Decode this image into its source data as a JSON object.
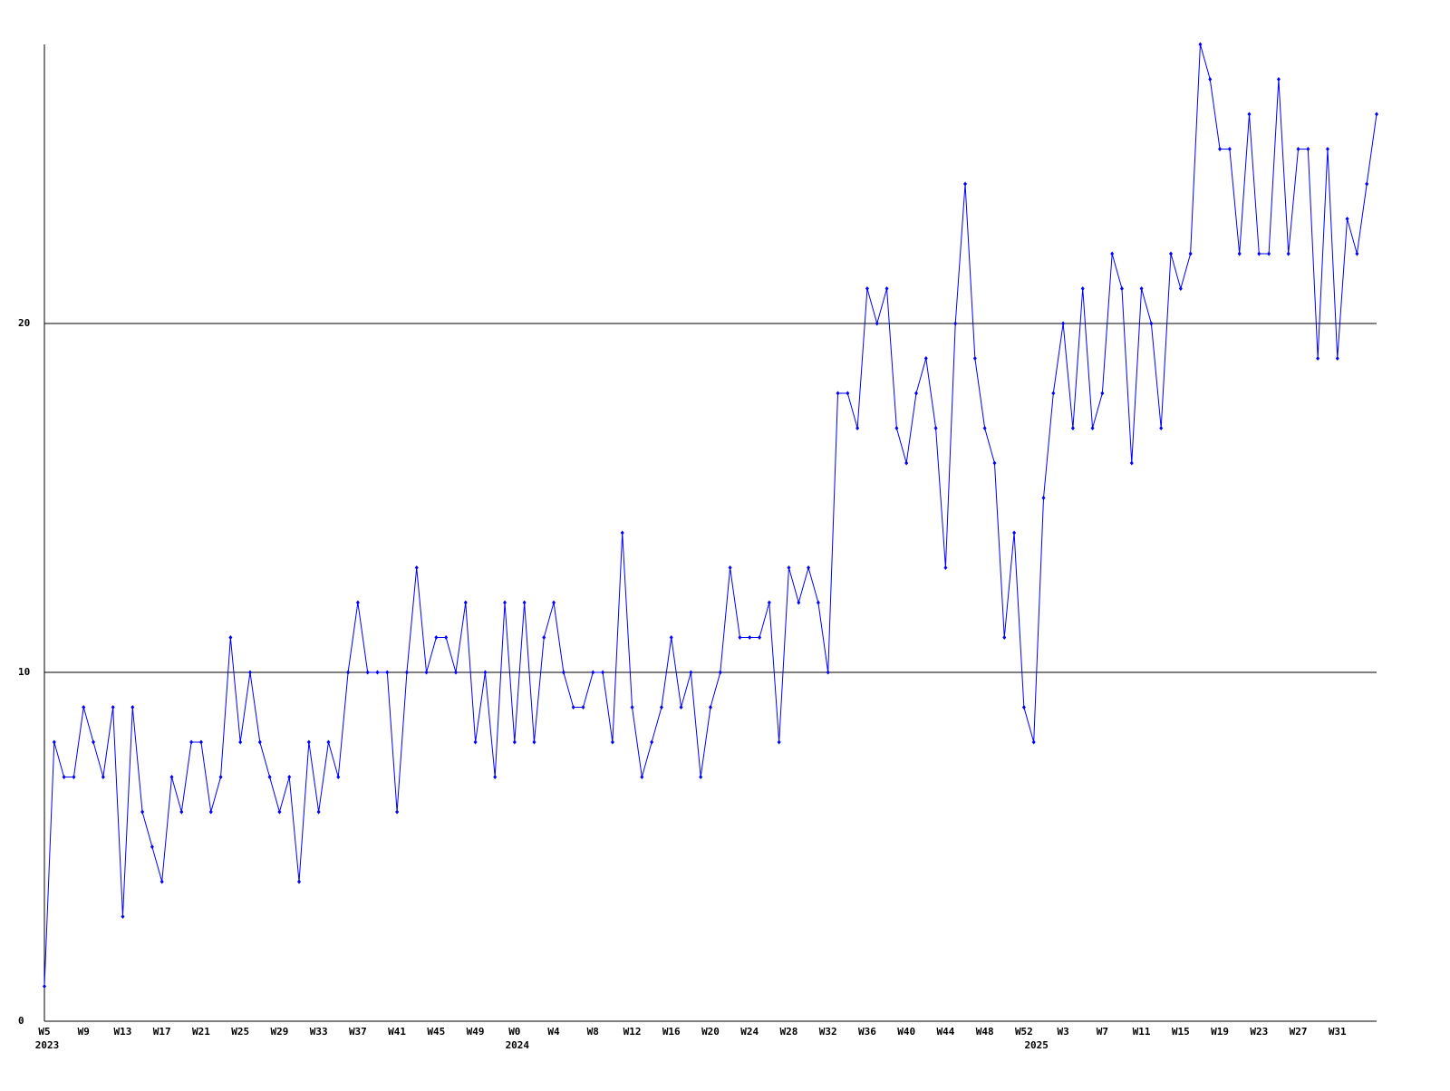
{
  "chart_data": {
    "type": "line",
    "categories": [
      "W5",
      null,
      null,
      null,
      "W9",
      null,
      null,
      null,
      "W13",
      null,
      null,
      null,
      "W17",
      null,
      null,
      null,
      "W21",
      null,
      null,
      null,
      "W25",
      null,
      null,
      null,
      "W29",
      null,
      null,
      null,
      "W33",
      null,
      null,
      null,
      "W37",
      null,
      null,
      null,
      "W41",
      null,
      null,
      null,
      "W45",
      null,
      null,
      null,
      "W49",
      null,
      null,
      null,
      "W0",
      null,
      null,
      null,
      "W4",
      null,
      null,
      null,
      "W8",
      null,
      null,
      null,
      "W12",
      null,
      null,
      null,
      "W16",
      null,
      null,
      null,
      "W20",
      null,
      null,
      null,
      "W24",
      null,
      null,
      null,
      "W28",
      null,
      null,
      null,
      "W32",
      null,
      null,
      null,
      "W36",
      null,
      null,
      null,
      "W40",
      null,
      null,
      null,
      "W44",
      null,
      null,
      null,
      "W48",
      null,
      null,
      null,
      "W52",
      null,
      null,
      null,
      "W3",
      null,
      null,
      null,
      "W7",
      null,
      null,
      null,
      "W11",
      null,
      null,
      null,
      "W15",
      null,
      null,
      null,
      "W19",
      null,
      null,
      null,
      "W23",
      null,
      null,
      null,
      "W27",
      null,
      null,
      null,
      "W31",
      null,
      null,
      null,
      null
    ],
    "years": [
      "2023",
      null,
      null,
      null,
      null,
      null,
      null,
      null,
      null,
      null,
      null,
      null,
      null,
      null,
      null,
      null,
      null,
      null,
      null,
      null,
      null,
      null,
      null,
      null,
      null,
      null,
      null,
      null,
      null,
      null,
      null,
      null,
      null,
      null,
      null,
      null,
      null,
      null,
      null,
      null,
      null,
      null,
      null,
      null,
      null,
      null,
      null,
      null,
      "2024",
      null,
      null,
      null,
      null,
      null,
      null,
      null,
      null,
      null,
      null,
      null,
      null,
      null,
      null,
      null,
      null,
      null,
      null,
      null,
      null,
      null,
      null,
      null,
      null,
      null,
      null,
      null,
      null,
      null,
      null,
      null,
      null,
      null,
      null,
      null,
      null,
      null,
      null,
      null,
      null,
      null,
      null,
      null,
      null,
      null,
      null,
      null,
      null,
      null,
      null,
      null,
      null,
      "2025",
      null,
      null,
      null,
      null,
      null,
      null,
      null,
      null,
      null,
      null,
      null,
      null,
      null,
      null,
      null,
      null,
      null,
      null,
      null,
      null,
      null,
      null,
      null,
      null,
      null,
      null,
      null,
      null,
      null,
      null,
      null,
      null,
      null,
      null,
      null
    ],
    "series": [
      {
        "color": "#0000ff",
        "values": [
          1,
          8,
          7,
          7,
          9,
          8,
          7,
          9,
          3,
          9,
          6,
          5,
          4,
          7,
          6,
          8,
          8,
          6,
          7,
          11,
          8,
          10,
          8,
          7,
          6,
          7,
          4,
          8,
          6,
          8,
          7,
          10,
          12,
          10,
          10,
          10,
          6,
          10,
          13,
          10,
          11,
          11,
          10,
          12,
          8,
          10,
          7,
          12,
          8,
          12,
          8,
          11,
          12,
          10,
          9,
          9,
          10,
          10,
          8,
          14,
          9,
          7,
          8,
          9,
          11,
          9,
          10,
          7,
          9,
          10,
          13,
          11,
          11,
          11,
          12,
          8,
          13,
          12,
          13,
          12,
          10,
          18,
          18,
          17,
          21,
          20,
          21,
          17,
          16,
          18,
          19,
          17,
          13,
          20,
          24,
          19,
          17,
          16,
          11,
          14,
          9,
          8,
          15,
          18,
          20,
          17,
          21,
          17,
          18,
          22,
          21,
          16,
          21,
          20,
          17,
          22,
          21,
          22,
          28,
          27,
          25,
          25,
          22,
          26,
          22,
          22,
          27,
          22,
          25,
          25,
          19,
          25,
          19,
          23,
          22,
          24,
          26
        ]
      }
    ],
    "ylim": [
      0,
      28
    ],
    "yticks": [
      0,
      10,
      20
    ],
    "grid": true
  }
}
